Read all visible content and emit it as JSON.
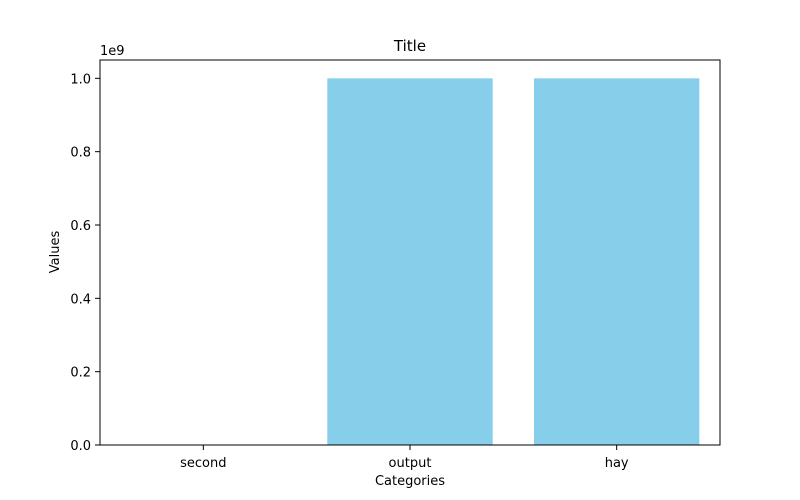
{
  "chart_data": {
    "type": "bar",
    "title": "Title",
    "xlabel": "Categories",
    "ylabel": "Values",
    "categories": [
      "second",
      "output",
      "hay"
    ],
    "values": [
      0,
      1000000000,
      1000000000
    ],
    "ylim": [
      0,
      1050000000
    ],
    "yticks": [
      0,
      200000000,
      400000000,
      600000000,
      800000000,
      1000000000
    ],
    "ytick_labels": [
      "0.0",
      "0.2",
      "0.4",
      "0.6",
      "0.8",
      "1.0"
    ],
    "y_offset_label": "1e9",
    "grid": false,
    "legend": "none",
    "bar_color": "#87CEEB"
  }
}
